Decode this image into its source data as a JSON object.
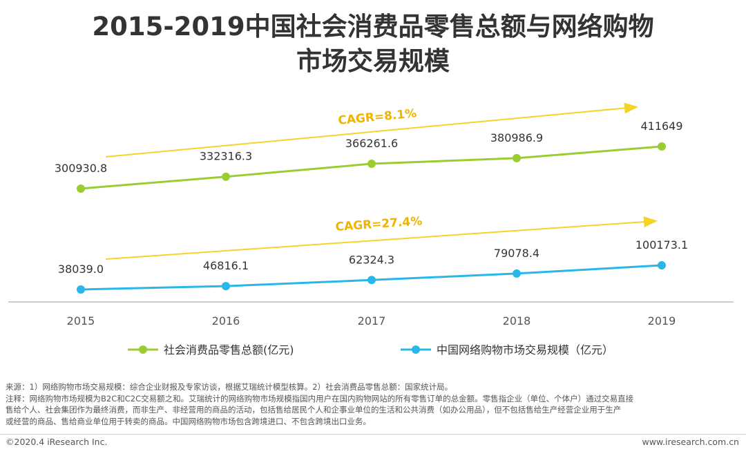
{
  "title": {
    "line1": "2015-2019中国社会消费品零售总额与网络购物",
    "line2": "市场交易规模"
  },
  "chart_data": {
    "type": "line",
    "categories": [
      "2015",
      "2016",
      "2017",
      "2018",
      "2019"
    ],
    "series": [
      {
        "name": "社会消费品零售总额(亿元)",
        "values": [
          300930.8,
          332316.3,
          366261.6,
          380986.9,
          411649
        ],
        "labels": [
          "300930.8",
          "332316.3",
          "366261.6",
          "380986.9",
          "411649"
        ],
        "color": "#9acd32",
        "cagr": "CAGR=8.1%"
      },
      {
        "name": "中国网络购物市场交易规模（亿元）",
        "values": [
          38039.0,
          46816.1,
          62324.3,
          79078.4,
          100173.1
        ],
        "labels": [
          "38039.0",
          "46816.1",
          "62324.3",
          "79078.4",
          "100173.1"
        ],
        "color": "#29b6e8",
        "cagr": "CAGR=27.4%"
      }
    ],
    "trend_arrow_color": "#f5d327",
    "cagr_text_color": "#f0b400",
    "legend_position": "bottom",
    "grid": false
  },
  "notes": {
    "line1": "来源：1）网络购物市场交易规模：综合企业财报及专家访谈，根据艾瑞统计模型核算。2）社会消费品零售总额：国家统计局。",
    "line2": "注释：网络购物市场规模为B2C和C2C交易额之和。艾瑞统计的网络购物市场规模指国内用户在国内购物网站的所有零售订单的总金额。零售指企业（单位、个体户）通过交易直接",
    "line3": "售给个人、社会集团作为最终消费，而非生产、非经营用的商品的活动，包括售给居民个人和企事业单位的生活和公共消费（如办公用品），但不包括售给生产经营企业用于生产",
    "line4": "或经营的商品、售给商业单位用于转卖的商品。中国网络购物市场包含跨境进口、不包含跨境出口业务。"
  },
  "footer": {
    "copyright": "©2020.4 iResearch Inc.",
    "website": "www.iresearch.com.cn"
  }
}
